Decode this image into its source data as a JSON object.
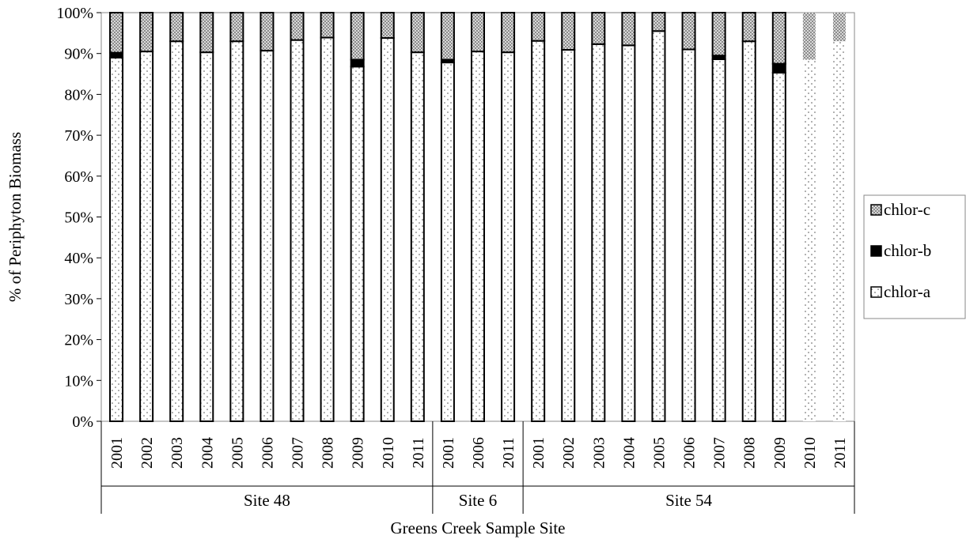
{
  "chart_data": {
    "type": "bar",
    "stacked": true,
    "normalized": true,
    "xlabel": "Greens Creek Sample Site",
    "ylabel": "% of Periphyton Biomass",
    "ylim": [
      0,
      100
    ],
    "y_ticks": [
      "0%",
      "10%",
      "20%",
      "30%",
      "40%",
      "50%",
      "60%",
      "70%",
      "80%",
      "90%",
      "100%"
    ],
    "groups": [
      {
        "name": "Site 48",
        "categories": [
          "2001",
          "2002",
          "2003",
          "2004",
          "2005",
          "2006",
          "2007",
          "2008",
          "2009",
          "2010",
          "2011"
        ]
      },
      {
        "name": "Site 6",
        "categories": [
          "2001",
          "2006",
          "2011"
        ]
      },
      {
        "name": "Site 54",
        "categories": [
          "2001",
          "2002",
          "2003",
          "2004",
          "2005",
          "2006",
          "2007",
          "2008",
          "2009",
          "2010",
          "2011"
        ]
      }
    ],
    "series": [
      {
        "name": "chlor-a",
        "color": "#ffffff",
        "values": [
          89,
          90.5,
          93,
          90.3,
          93,
          90.7,
          93.3,
          93.9,
          86.8,
          93.8,
          90.3,
          87.8,
          90.5,
          90.3,
          93.1,
          90.9,
          92.3,
          92,
          95.5,
          91,
          88.6,
          93,
          85.3,
          88.5,
          93
        ]
      },
      {
        "name": "chlor-b",
        "color": "#000000",
        "values": [
          1.2,
          0,
          0,
          0,
          0,
          0,
          0,
          0,
          1.7,
          0,
          0,
          0.7,
          0,
          0,
          0,
          0,
          0,
          0,
          0,
          0,
          0.9,
          0,
          2.2,
          0,
          0
        ]
      },
      {
        "name": "chlor-c",
        "color": "#c8c8c8",
        "values": [
          9.8,
          9.5,
          7,
          9.7,
          7,
          9.3,
          6.7,
          6.1,
          11.5,
          6.2,
          9.7,
          11.5,
          9.5,
          9.7,
          6.9,
          9.1,
          7.7,
          8,
          4.5,
          9,
          10.5,
          7,
          12.5,
          11.5,
          7
        ]
      }
    ],
    "legend": {
      "position": "right",
      "order": [
        "chlor-c",
        "chlor-b",
        "chlor-a"
      ]
    },
    "grid": false
  }
}
